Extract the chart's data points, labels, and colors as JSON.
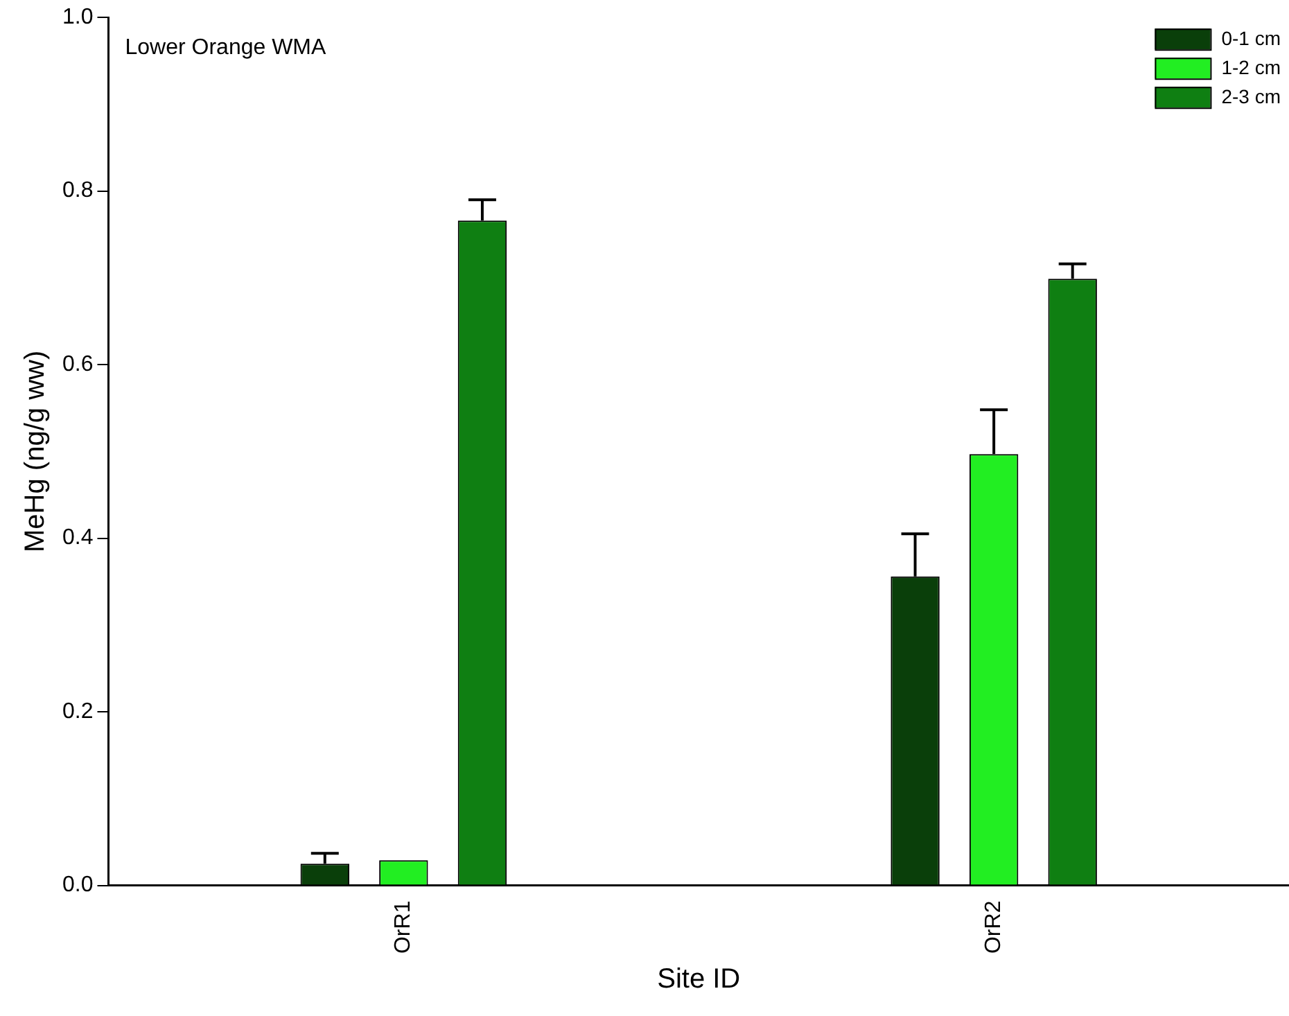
{
  "chart_data": {
    "type": "bar",
    "xlabel": "Site ID",
    "ylabel": "MeHg (ng/g ww)",
    "annotations": [
      "Lower Orange WMA"
    ],
    "categories": [
      "OrR1",
      "OrR2"
    ],
    "series": [
      {
        "name": "0-1 cm",
        "color": "#0a3f0a",
        "values": [
          0.025,
          0.356
        ],
        "errors": [
          [
            0.025,
            0.037
          ],
          [
            0.356,
            0.405
          ]
        ]
      },
      {
        "name": "1-2 cm",
        "color": "#22ee22",
        "values": [
          0.029,
          0.497
        ],
        "errors": [
          null,
          [
            0.497,
            0.548
          ]
        ]
      },
      {
        "name": "2-3 cm",
        "color": "#0f7f12",
        "values": [
          0.766,
          0.699
        ],
        "errors": [
          [
            0.766,
            0.79
          ],
          [
            0.699,
            0.716
          ]
        ]
      }
    ],
    "ylim": [
      0,
      1
    ],
    "yticks": [
      {
        "value": 0,
        "label": "0.0"
      },
      {
        "value": 0.2,
        "label": "0.2"
      },
      {
        "value": 0.4,
        "label": "0.4"
      },
      {
        "value": 0.6,
        "label": "0.6"
      },
      {
        "value": 0.8,
        "label": "0.8"
      },
      {
        "value": 1,
        "label": "1.0"
      }
    ],
    "grid": false,
    "legend": "top right"
  }
}
